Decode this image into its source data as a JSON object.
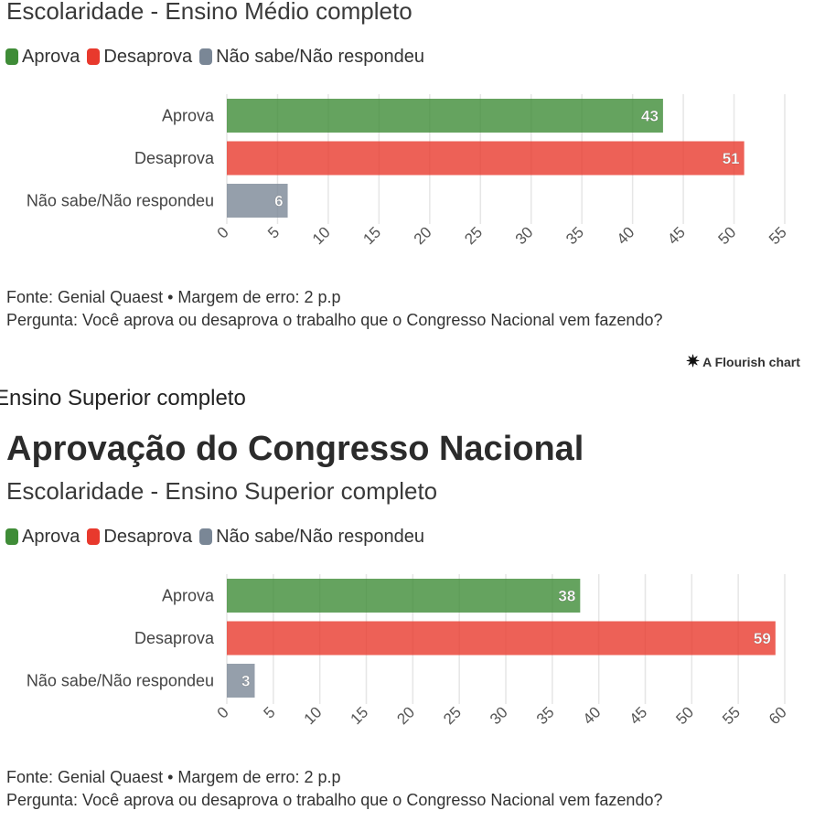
{
  "legend": [
    {
      "label": "Aprova",
      "color": "#3f8c37"
    },
    {
      "label": "Desaprova",
      "color": "#e8392d"
    },
    {
      "label": "Não sabe/Não respondeu",
      "color": "#7a8796"
    }
  ],
  "top": {
    "subtitle": "Escolaridade - Ensino Médio completo",
    "footer_source": "Fonte: Genial Quaest • Margem de erro: 2 p.p",
    "footer_question": "Pergunta: Você aprova ou desaprova o trabalho que o Congresso Nacional vem fazendo?"
  },
  "attribution": "A Flourish chart",
  "section_heading": "Ensino Superior completo",
  "bottom": {
    "title": "Aprovação do Congresso Nacional",
    "subtitle": "Escolaridade - Ensino Superior completo",
    "footer_source": "Fonte: Genial Quaest • Margem de erro: 2 p.p",
    "footer_question": "Pergunta: Você aprova ou desaprova o trabalho que o Congresso Nacional vem fazendo?"
  },
  "chart_data": [
    {
      "type": "bar",
      "orientation": "horizontal",
      "subtitle": "Escolaridade - Ensino Médio completo",
      "categories": [
        "Aprova",
        "Desaprova",
        "Não sabe/Não respondeu"
      ],
      "values": [
        43,
        51,
        6
      ],
      "colors": [
        "#3f8c37",
        "#e8392d",
        "#7a8796"
      ],
      "xlim": [
        0,
        55
      ],
      "xticks": [
        0,
        5,
        10,
        15,
        20,
        25,
        30,
        35,
        40,
        45,
        50,
        55
      ],
      "grid": true
    },
    {
      "type": "bar",
      "orientation": "horizontal",
      "title": "Aprovação do Congresso Nacional",
      "subtitle": "Escolaridade - Ensino Superior completo",
      "categories": [
        "Aprova",
        "Desaprova",
        "Não sabe/Não respondeu"
      ],
      "values": [
        38,
        59,
        3
      ],
      "colors": [
        "#3f8c37",
        "#e8392d",
        "#7a8796"
      ],
      "xlim": [
        0,
        60
      ],
      "xticks": [
        0,
        5,
        10,
        15,
        20,
        25,
        30,
        35,
        40,
        45,
        50,
        55,
        60
      ],
      "grid": true
    }
  ]
}
